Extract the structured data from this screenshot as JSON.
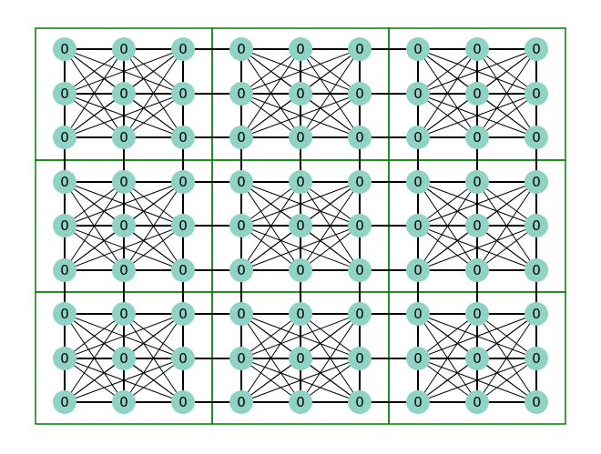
{
  "grid": {
    "block_rows": 3,
    "block_cols": 3,
    "cells_per_block_side": 3
  },
  "node": {
    "label": "0",
    "fill": "#8fd3c5",
    "label_color": "#000000"
  },
  "colors": {
    "block_border": "#008000",
    "edge": "#000000",
    "background": "#ffffff"
  }
}
